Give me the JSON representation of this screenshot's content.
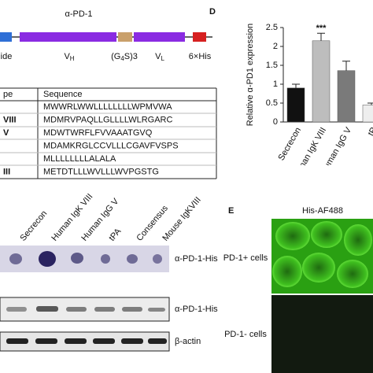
{
  "construct": {
    "title": "α-PD-1",
    "segments": [
      {
        "label": [
          "ide"
        ],
        "color": "#2f6fd6"
      },
      {
        "label": [
          "V",
          "H"
        ],
        "color": "#8a2be2"
      },
      {
        "label": [
          "(G",
          "4",
          "S)3"
        ],
        "color": "#c9a06b"
      },
      {
        "label": [
          "V",
          "L"
        ],
        "color": "#8a2be2"
      },
      {
        "label": [
          "6×His"
        ],
        "color": "#d62020"
      }
    ]
  },
  "table": {
    "header": [
      "pe",
      "Sequence"
    ],
    "rows": [
      {
        "sequence": "MWWRLWWLLLLLLLLWPMVWA"
      },
      {
        "type": "VIII",
        "sequence": "MDMRVPAQLLGLLLLWLRGARC"
      },
      {
        "type": "V",
        "sequence": "MDWTWRFLFVVAAATGVQ"
      },
      {
        "sequence": "MDAMKRGLCCVLLLCGAVFVSPS"
      },
      {
        "sequence": "MLLLLLLLLALALA"
      },
      {
        "type": "III",
        "sequence": "METDTLLLWVLLLWVPGSTG"
      }
    ]
  },
  "chart_data": {
    "type": "bar",
    "panel": "D",
    "y_label": "Relative α-PD1 expression",
    "categories": [
      "Secrecon",
      "Human IgK VIII",
      "Human IgG V",
      "tP"
    ],
    "values": [
      0.9,
      2.15,
      1.36,
      0.45
    ],
    "errors": [
      0.1,
      0.2,
      0.25,
      0.05
    ],
    "colors": [
      "#111111",
      "#bdbdbd",
      "#7a7a7a",
      "#eeeeee"
    ],
    "annotations": [
      null,
      "***",
      null,
      null
    ],
    "ylim": [
      0,
      2.5
    ],
    "yticks": [
      0,
      0.5,
      1.0,
      1.5,
      2.0,
      2.5
    ]
  },
  "blot": {
    "lanes": [
      "Secrecon",
      "Human IgK VIII",
      "Human IgG V",
      "tPA",
      "Consensus",
      "Mouse IgKVIII"
    ],
    "labels": [
      "α-PD-1-His",
      "α-PD-1-His",
      "β-actin"
    ]
  },
  "panel_e": {
    "panel": "E",
    "title": "His-AF488",
    "rows": [
      "PD-1+ cells",
      "PD-1- cells"
    ]
  }
}
